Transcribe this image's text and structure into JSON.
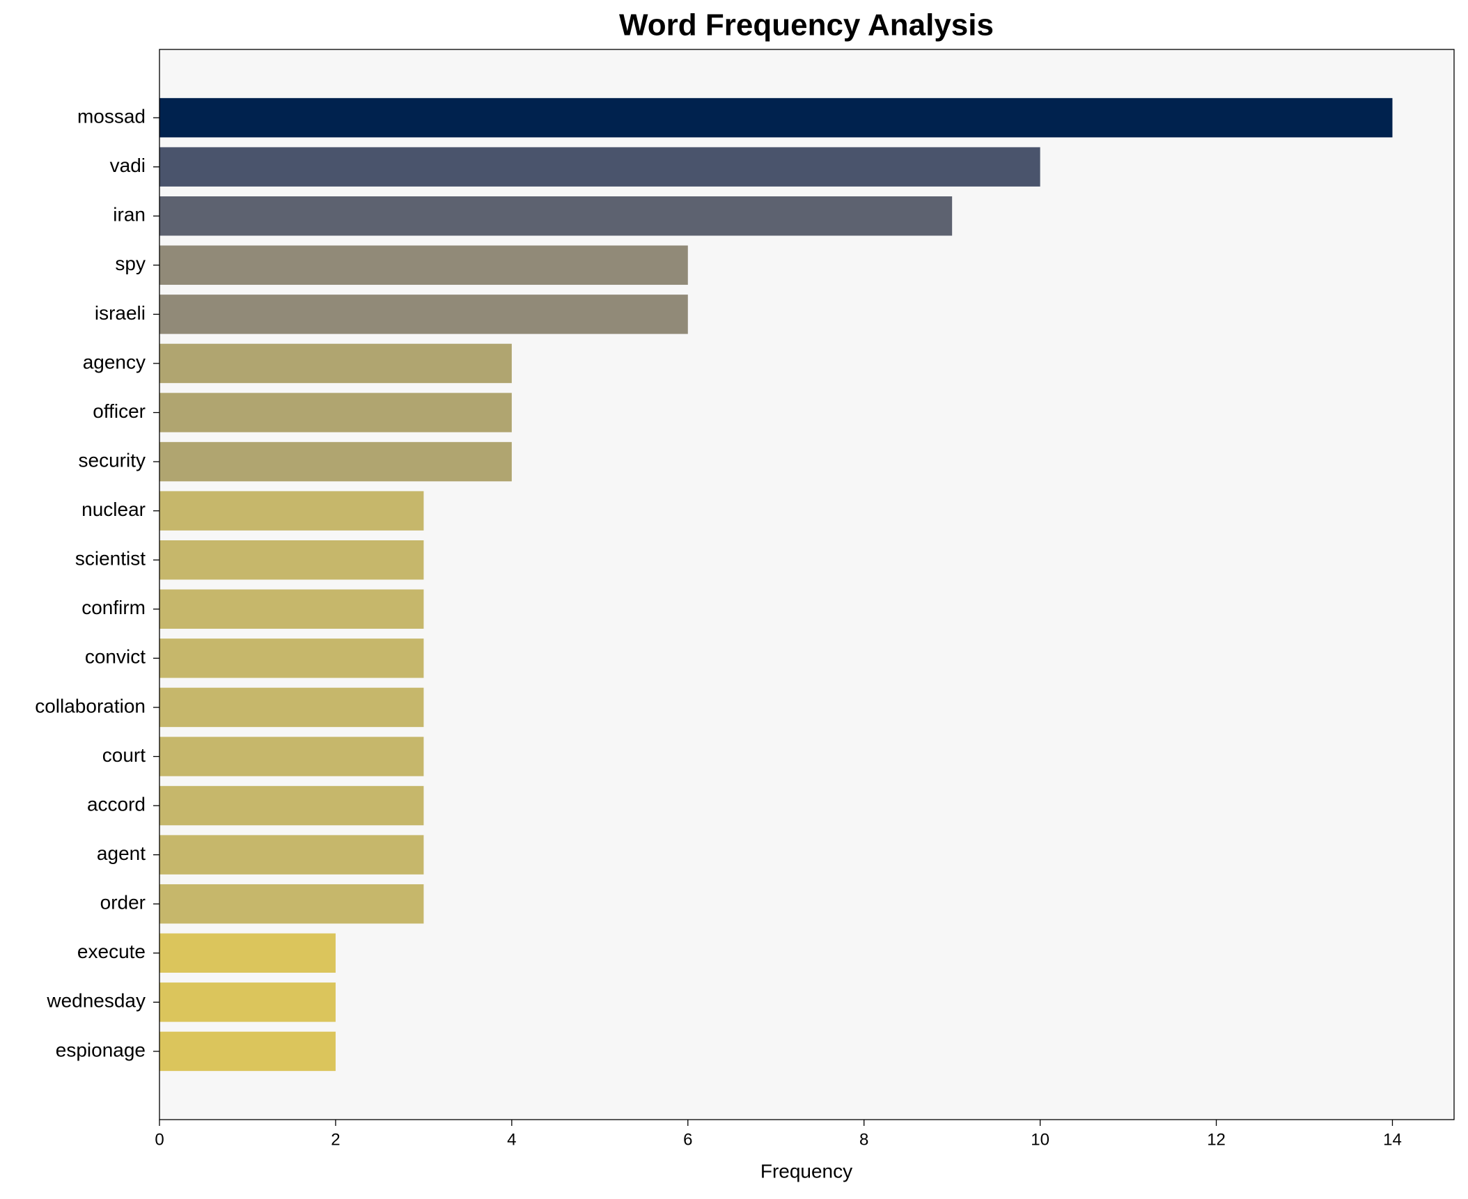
{
  "chart_data": {
    "type": "barh",
    "title": "Word Frequency Analysis",
    "x_label": "Frequency",
    "categories": [
      "mossad",
      "vadi",
      "iran",
      "spy",
      "israeli",
      "agency",
      "officer",
      "security",
      "nuclear",
      "scientist",
      "confirm",
      "convict",
      "collaboration",
      "court",
      "accord",
      "agent",
      "order",
      "execute",
      "wednesday",
      "espionage"
    ],
    "values": [
      14,
      10,
      9,
      6,
      6,
      4,
      4,
      4,
      3,
      3,
      3,
      3,
      3,
      3,
      3,
      3,
      3,
      2,
      2,
      2
    ],
    "colors": [
      "#00224e",
      "#4a546c",
      "#5d6270",
      "#918a78",
      "#918a78",
      "#b0a570",
      "#b0a570",
      "#b0a570",
      "#c6b76b",
      "#c6b76b",
      "#c6b76b",
      "#c6b76b",
      "#c6b76b",
      "#c6b76b",
      "#c6b76b",
      "#c6b76b",
      "#c6b76b",
      "#dbc55c",
      "#dbc55c",
      "#dbc55c"
    ],
    "xlim": [
      0,
      14.7
    ],
    "xticks": [
      0,
      2,
      4,
      6,
      8,
      10,
      12,
      14
    ],
    "grid": false
  }
}
